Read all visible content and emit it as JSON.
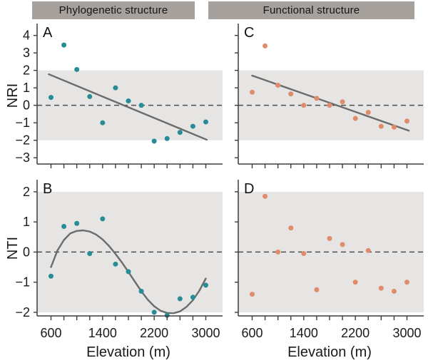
{
  "figure": {
    "headers": [
      {
        "label": "Phylogenetic structure"
      },
      {
        "label": "Functional structure"
      }
    ]
  },
  "colors": {
    "teal": "#288c96",
    "orange": "#e08b6a",
    "band": "#e6e5e4",
    "fit_line": "#6b6b6b",
    "zero_line": "#4d4d4d",
    "axis": "#3c3c3c",
    "header_bg": "#a6a19c",
    "text": "#1a1a1a"
  },
  "chart_data": {
    "type": "scatter",
    "x_axis": {
      "label": "Elevation (m)",
      "range": [
        600,
        3000
      ],
      "tick_step": 200,
      "labeled_ticks": [
        600,
        1400,
        2200,
        3000
      ]
    },
    "columns": [
      {
        "header": "Phylogenetic structure",
        "color": "#288c96"
      },
      {
        "header": "Functional structure",
        "color": "#e08b6a"
      }
    ],
    "rows": [
      {
        "ylabel": "NRI",
        "y_ticks": [
          4,
          3,
          2,
          1,
          0,
          -1,
          -2,
          -3
        ],
        "ylim": [
          -3.36,
          4.68
        ]
      },
      {
        "ylabel": "NTI",
        "y_ticks": [
          2,
          1,
          0,
          -1,
          -2
        ],
        "ylim": [
          -2.12,
          2.4
        ]
      }
    ],
    "significance_band": [
      -2,
      2
    ],
    "zero_line": true,
    "panels": [
      {
        "id": "A",
        "panel_label": "A",
        "row": 0,
        "col": 0,
        "x": [
          600,
          800,
          1000,
          1200,
          1400,
          1600,
          1800,
          2000,
          2200,
          2400,
          2600,
          2800,
          3000
        ],
        "y": [
          0.45,
          3.45,
          2.05,
          0.5,
          -1.0,
          1.0,
          0.25,
          0.0,
          -2.05,
          -1.9,
          -1.55,
          -1.2,
          -0.95
        ],
        "fit": {
          "type": "linear",
          "x": [
            565,
            3015
          ],
          "y": [
            1.78,
            -1.97
          ]
        }
      },
      {
        "id": "C",
        "panel_label": "C",
        "row": 0,
        "col": 1,
        "x": [
          600,
          800,
          1000,
          1200,
          1400,
          1600,
          1800,
          2000,
          2200,
          2400,
          2600,
          2800,
          3000
        ],
        "y": [
          0.75,
          3.4,
          1.15,
          0.65,
          0.0,
          0.4,
          0.0,
          0.2,
          -0.75,
          -0.4,
          -1.2,
          -1.25,
          -0.9
        ],
        "fit": {
          "type": "linear",
          "x": [
            600,
            3030
          ],
          "y": [
            1.7,
            -1.45
          ]
        }
      },
      {
        "id": "B",
        "panel_label": "B",
        "row": 1,
        "col": 0,
        "x": [
          600,
          800,
          1000,
          1200,
          1400,
          1600,
          1800,
          2000,
          2200,
          2400,
          2600,
          2800,
          3000
        ],
        "y": [
          -0.8,
          0.85,
          0.95,
          -0.05,
          1.1,
          -0.4,
          -0.65,
          -1.3,
          -2.0,
          -2.1,
          -1.55,
          -1.5,
          -1.1
        ],
        "fit": {
          "type": "smooth",
          "x": [
            600,
            700,
            800,
            900,
            1000,
            1100,
            1200,
            1300,
            1400,
            1500,
            1600,
            1700,
            1800,
            1900,
            2000,
            2100,
            2200,
            2300,
            2400,
            2500,
            2600,
            2700,
            2800,
            2900,
            3000
          ],
          "y": [
            -0.5,
            0.05,
            0.4,
            0.62,
            0.7,
            0.72,
            0.68,
            0.58,
            0.42,
            0.2,
            -0.06,
            -0.35,
            -0.66,
            -0.98,
            -1.3,
            -1.58,
            -1.8,
            -1.95,
            -2.02,
            -2.03,
            -1.97,
            -1.82,
            -1.6,
            -1.28,
            -0.88
          ]
        }
      },
      {
        "id": "D",
        "panel_label": "D",
        "row": 1,
        "col": 1,
        "x": [
          600,
          800,
          1000,
          1200,
          1400,
          1600,
          1800,
          2000,
          2200,
          2400,
          2600,
          2800,
          3000
        ],
        "y": [
          -1.4,
          1.85,
          0.0,
          0.8,
          -0.05,
          -1.25,
          0.45,
          0.25,
          -1.0,
          0.05,
          -1.2,
          -1.3,
          -1.0
        ],
        "fit": null
      }
    ]
  }
}
